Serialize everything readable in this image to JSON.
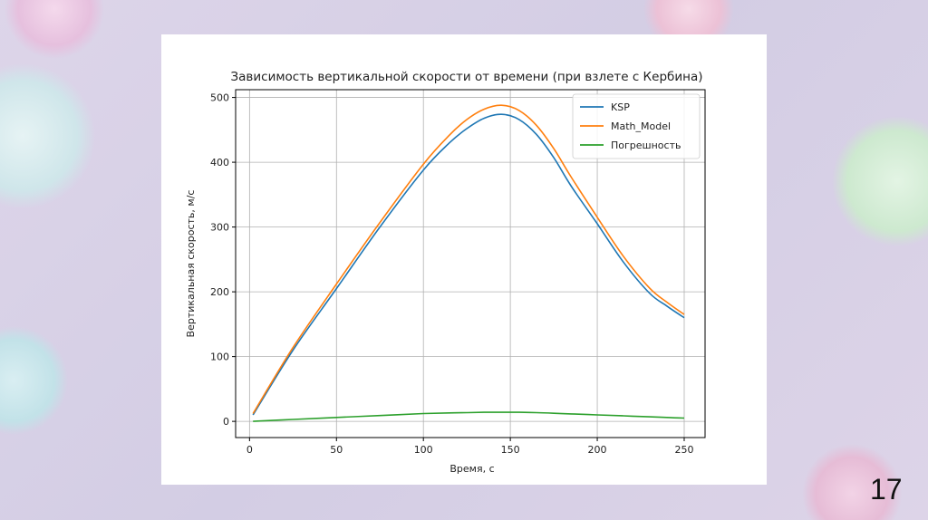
{
  "slide": {
    "number": "17"
  },
  "chart_data": {
    "type": "line",
    "title": "Зависимость вертикальной скорости от времени (при взлете с Кербина)",
    "xlabel": "Время, с",
    "ylabel": "Вертикальная скорость, м/с",
    "xlim": [
      -8,
      262
    ],
    "ylim": [
      -25,
      512
    ],
    "xticks": [
      0,
      50,
      100,
      150,
      200,
      250
    ],
    "yticks": [
      0,
      100,
      200,
      300,
      400,
      500
    ],
    "grid": true,
    "legend_position": "top-right",
    "x": [
      2,
      25,
      50,
      75,
      100,
      115,
      125,
      135,
      145,
      155,
      165,
      175,
      185,
      200,
      215,
      230,
      240,
      250
    ],
    "series": [
      {
        "name": "KSP",
        "color": "#1f77b4",
        "values": [
          10,
          110,
          205,
          300,
          388,
          430,
          452,
          468,
          474,
          466,
          443,
          407,
          363,
          305,
          246,
          198,
          178,
          160
        ]
      },
      {
        "name": "Math_Model",
        "color": "#ff7f0e",
        "values": [
          12,
          114,
          212,
          307,
          397,
          442,
          466,
          482,
          488,
          480,
          457,
          421,
          377,
          315,
          255,
          206,
          184,
          165
        ]
      },
      {
        "name": "Погрешность",
        "color": "#2ca02c",
        "values": [
          0,
          3,
          6,
          9,
          12,
          13,
          13.5,
          14,
          14,
          14,
          13.5,
          12.5,
          11.5,
          10,
          8.5,
          7,
          6,
          5
        ]
      }
    ]
  }
}
